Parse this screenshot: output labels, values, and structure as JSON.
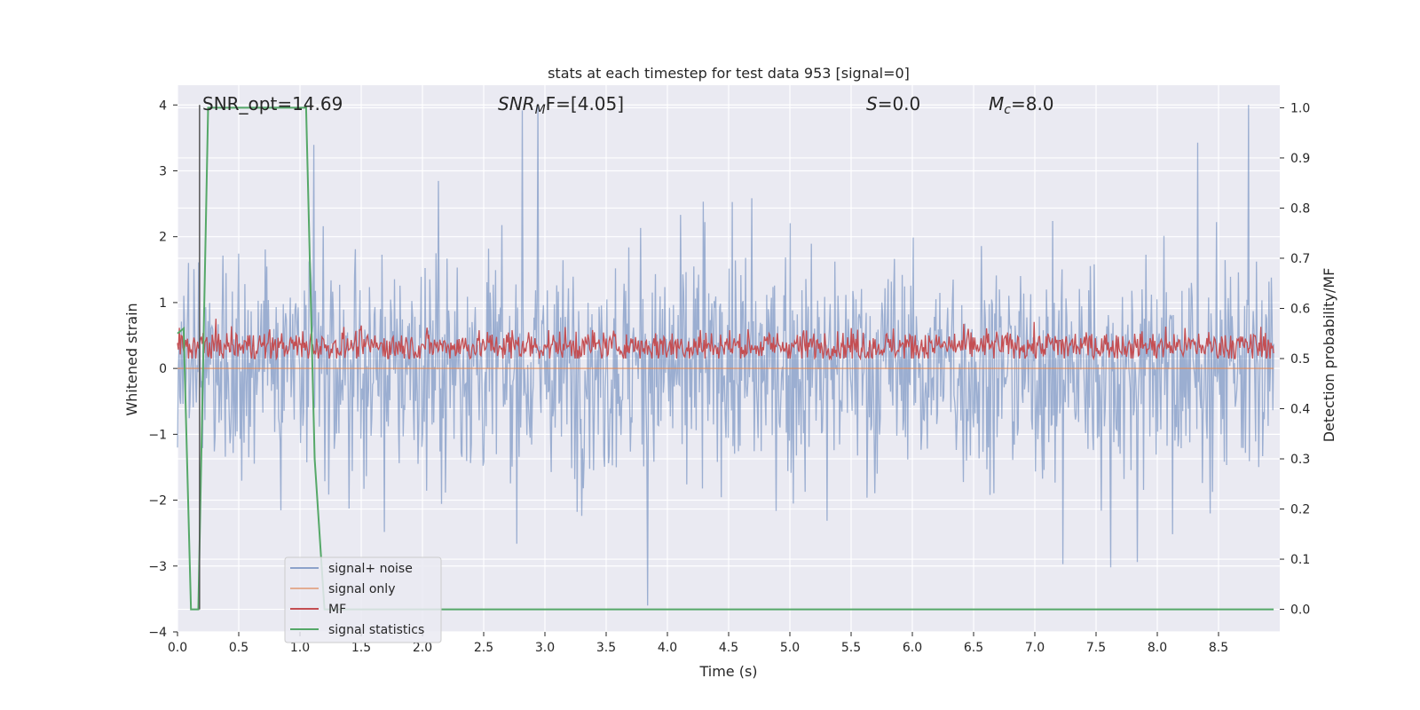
{
  "chart_data": {
    "type": "line",
    "title": "stats at each timestep for test data 953 [signal=0]",
    "xlabel": "Time (s)",
    "ylabel": "Whitened strain",
    "ylabel_right": "Detection probability/MF",
    "xlim": [
      0.0,
      9.0
    ],
    "ylim": [
      -4.0,
      4.3
    ],
    "ylim_right": [
      -0.045,
      1.045
    ],
    "x_ticks": [
      "0.0",
      "0.5",
      "1.0",
      "1.5",
      "2.0",
      "2.5",
      "3.0",
      "3.5",
      "4.0",
      "4.5",
      "5.0",
      "5.5",
      "6.0",
      "6.5",
      "7.0",
      "7.5",
      "8.0",
      "8.5"
    ],
    "y_ticks": [
      "4",
      "3",
      "2",
      "1",
      "0",
      "−1",
      "−2",
      "−3",
      "−4"
    ],
    "y_ticks_right": [
      "1.0",
      "0.9",
      "0.8",
      "0.7",
      "0.6",
      "0.5",
      "0.4",
      "0.3",
      "0.2",
      "0.1",
      "0.0"
    ],
    "grid": true,
    "background": "#eaeaf2",
    "annotations": [
      {
        "text": "SNR_opt=14.69"
      },
      {
        "text": "SNR_MF=[4.05]",
        "main": "SNR",
        "sub": "M",
        "rest": "F=[4.05]"
      },
      {
        "text": "S=0.0",
        "main": "S",
        "rest": "=0.0"
      },
      {
        "text": "M_c=8.0",
        "main": "M",
        "sub": "c",
        "rest": "=8.0"
      }
    ],
    "marker_x": 0.18,
    "legend": {
      "placement": "lower-left"
    },
    "series": [
      {
        "name": "signal+ noise",
        "color": "#4c72b0",
        "alpha": 0.5,
        "axis": "left",
        "description_range": [
          -3.6,
          4.0
        ],
        "typical_amplitude": 1.7
      },
      {
        "name": "signal only",
        "color": "#dd8452",
        "axis": "left",
        "x": [
          0.0,
          8.95
        ],
        "y": [
          0.0,
          0.0
        ]
      },
      {
        "name": "MF",
        "color": "#c44e52",
        "axis": "right",
        "typical_range": [
          0.5,
          0.6
        ]
      },
      {
        "name": "signal statistics",
        "color": "#55a868",
        "axis": "right",
        "x": [
          0.0,
          0.05,
          0.11,
          0.17,
          0.25,
          1.05,
          1.12,
          1.2,
          8.95
        ],
        "y": [
          0.55,
          0.56,
          0.0,
          0.0,
          1.0,
          1.0,
          0.3,
          0.0,
          0.0
        ]
      }
    ]
  }
}
